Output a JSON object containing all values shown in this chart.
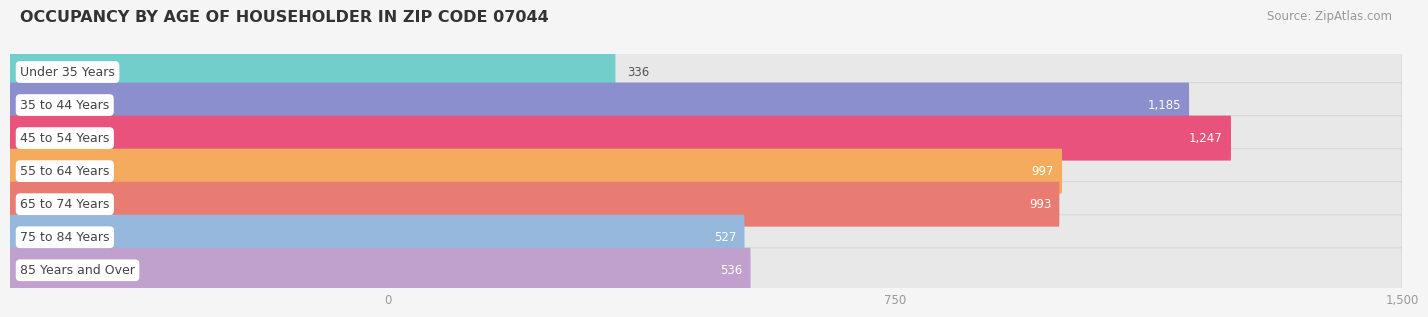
{
  "title": "OCCUPANCY BY AGE OF HOUSEHOLDER IN ZIP CODE 07044",
  "source": "Source: ZipAtlas.com",
  "categories": [
    "Under 35 Years",
    "35 to 44 Years",
    "45 to 54 Years",
    "55 to 64 Years",
    "65 to 74 Years",
    "75 to 84 Years",
    "85 Years and Over"
  ],
  "values": [
    336,
    1185,
    1247,
    997,
    993,
    527,
    536
  ],
  "bar_colors": [
    "#72ceca",
    "#8b8fce",
    "#e9527a",
    "#f5ab5e",
    "#e87c72",
    "#96b8dc",
    "#c0a0cc"
  ],
  "xlim_left": -560,
  "xlim_right": 1500,
  "data_min": 0,
  "data_max": 1500,
  "xticks": [
    0,
    750,
    1500
  ],
  "xtick_labels": [
    "0",
    "750",
    "1,500"
  ],
  "label_color_dark": "#555555",
  "label_color_white": "#ffffff",
  "background_color": "#f5f5f5",
  "bar_bg_color": "#e8e8e8",
  "bar_bg_edge_color": "#d8d8d8",
  "title_fontsize": 11.5,
  "source_fontsize": 8.5,
  "label_fontsize": 9,
  "value_fontsize": 8.5,
  "value_threshold": 400
}
